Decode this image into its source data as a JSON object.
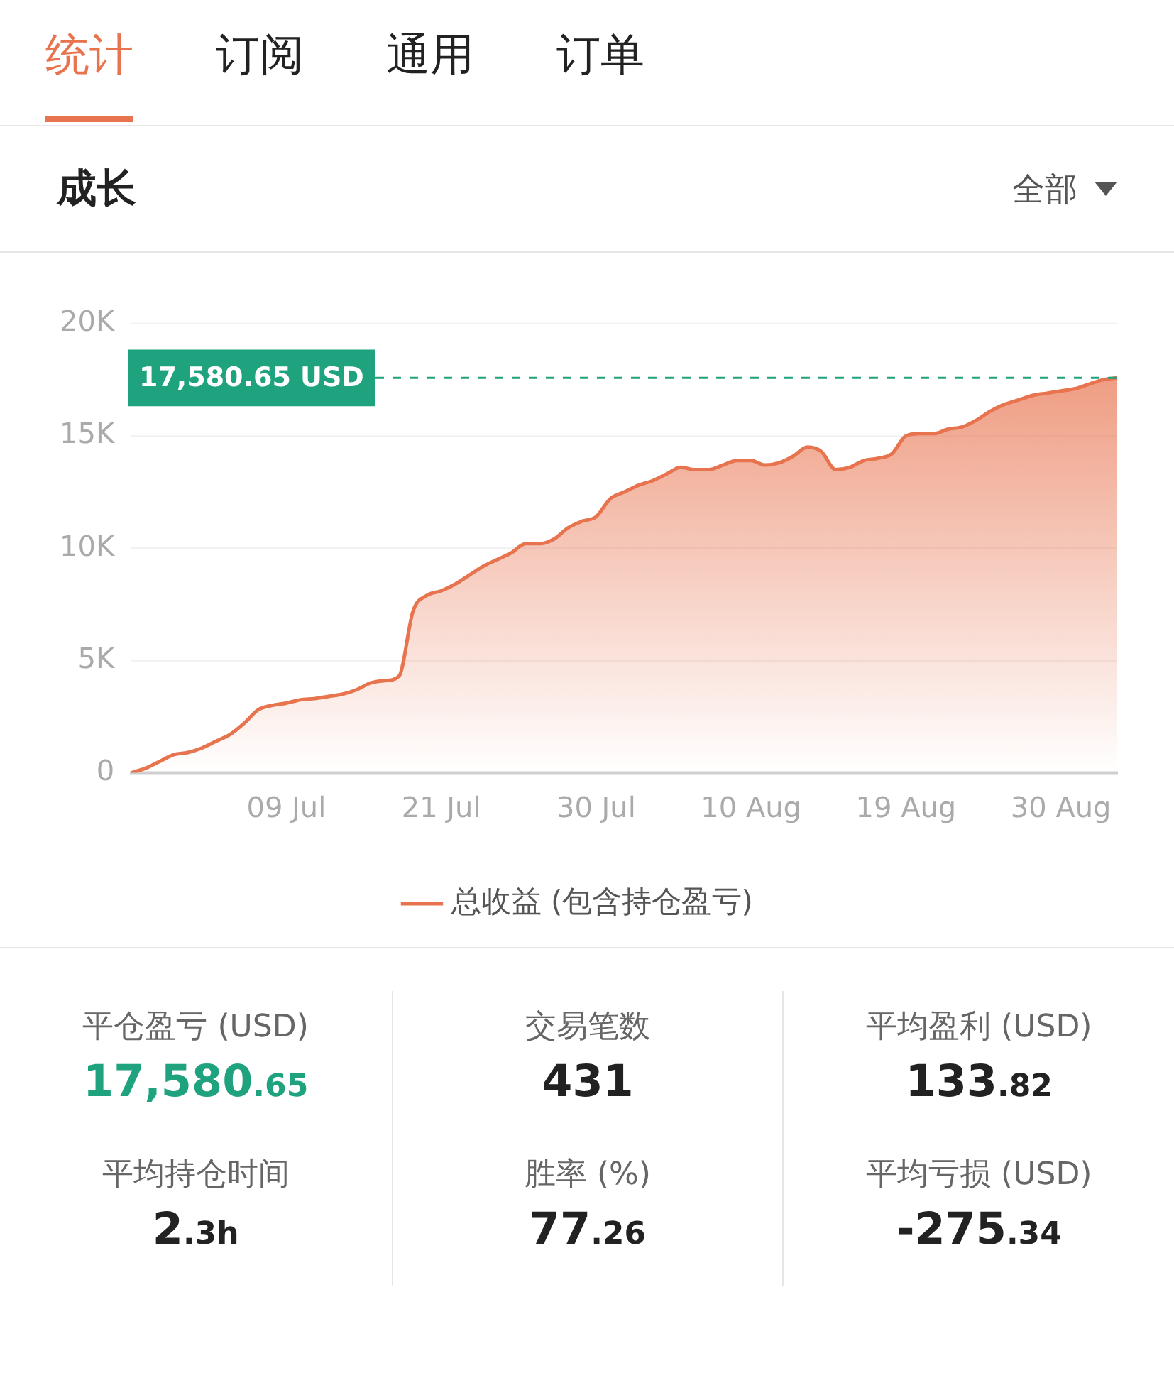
{
  "chart_data": [
    {
      "type": "other",
      "annotations": [
        "统计",
        "订阅",
        "通用",
        "订单"
      ]
    },
    {
      "type": "area",
      "title": "成长",
      "annotations": [
        "全部"
      ],
      "categories": [
        null,
        null,
        null,
        null,
        null,
        null,
        null,
        null,
        null,
        null,
        null,
        "09 Jul",
        null,
        null,
        null,
        null,
        null,
        null,
        null,
        null,
        null,
        null,
        "21 Jul",
        null,
        null,
        null,
        null,
        null,
        null,
        null,
        null,
        null,
        null,
        "30 Jul",
        null,
        null,
        null,
        null,
        null,
        null,
        null,
        null,
        null,
        null,
        "10 Aug",
        null,
        null,
        null,
        null,
        null,
        null,
        null,
        null,
        null,
        null,
        "19 Aug",
        null,
        null,
        null,
        null,
        null,
        null,
        null,
        null,
        null,
        null,
        "30 Aug",
        null,
        null,
        null,
        null
      ],
      "series": [
        {
          "name": "总收益 (包含持仓盈亏)",
          "color": "#e8744f",
          "values": [
            0,
            200,
            500,
            800,
            900,
            1100,
            1400,
            1700,
            2200,
            2800,
            3000,
            3100,
            3250,
            3300,
            3400,
            3500,
            3700,
            4000,
            4100,
            4300,
            7200,
            7900,
            8100,
            8400,
            8800,
            9200,
            9500,
            9800,
            10200,
            10200,
            10400,
            10900,
            11200,
            11400,
            12200,
            12500,
            12800,
            13000,
            13300,
            13600,
            13500,
            13500,
            13700,
            13900,
            13900,
            13700,
            13800,
            14100,
            14500,
            14300,
            13500,
            13600,
            13900,
            14000,
            14200,
            15000,
            15100,
            15100,
            15300,
            15400,
            15700,
            16100,
            16400,
            16600,
            16800,
            16900,
            17000,
            17100,
            17300,
            17500,
            17580.65
          ]
        }
      ],
      "ylim": [
        0,
        20000
      ],
      "yticks": [
        0,
        {
          "value": 5000,
          "label": "5K"
        },
        {
          "value": 10000,
          "label": "10K"
        },
        {
          "value": 15000,
          "label": "15K"
        },
        {
          "value": 20000,
          "label": "20K"
        }
      ],
      "grid": "y",
      "legend": "bottom",
      "marker": "none",
      "line_style": "solid",
      "ref_lines": [
        {
          "axis": "y",
          "value": 17580.65,
          "label": "17,580.65 USD",
          "color": "#1fa27e",
          "line_style": "dashed"
        }
      ]
    },
    {
      "type": "other",
      "annotations": [
        "平仓盈亏 (USD)",
        "17,580.65",
        "交易笔数",
        "431",
        "平均盈利 (USD)",
        "133.82",
        "平均持仓时间",
        "2.3h",
        "胜率 (%)",
        "77.26",
        "平均亏损 (USD)",
        "-275.34"
      ]
    }
  ]
}
